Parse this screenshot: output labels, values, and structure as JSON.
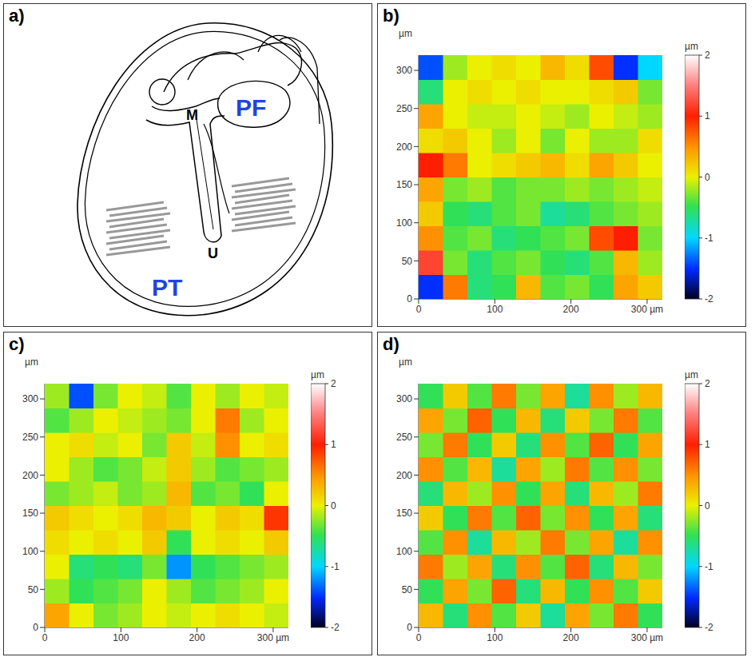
{
  "diagram": {
    "panel": "a)",
    "labels": [
      "M",
      "PF",
      "U",
      "PT"
    ]
  },
  "chart_data": [
    {
      "type": "heatmap",
      "panel": "b)",
      "ylabel": "µm",
      "xlim": [
        0,
        320
      ],
      "ylim": [
        0,
        320
      ],
      "xticks": [
        0,
        100,
        200,
        {
          "value": 300,
          "label": "300 µm"
        }
      ],
      "yticks": [
        0,
        50,
        100,
        150,
        200,
        250,
        300
      ],
      "x": [
        16,
        48,
        80,
        112,
        144,
        176,
        208,
        240,
        272,
        304
      ],
      "y": [
        16,
        48,
        80,
        112,
        144,
        176,
        208,
        240,
        272,
        304
      ],
      "cells": [
        [
          -1.5,
          0.6,
          -0.6,
          -0.5,
          0.3,
          -0.4,
          -0.3,
          -0.5,
          0.4,
          0.2
        ],
        [
          1.2,
          -0.3,
          -0.6,
          -0.4,
          -0.3,
          -0.5,
          -0.6,
          -0.4,
          0.3,
          -0.2
        ],
        [
          0.5,
          -0.4,
          -0.3,
          -0.6,
          -0.5,
          -0.4,
          -0.3,
          0.8,
          1.0,
          -0.3
        ],
        [
          0.2,
          -0.5,
          -0.6,
          -0.4,
          -0.3,
          -0.7,
          -0.6,
          -0.4,
          -0.3,
          -0.2
        ],
        [
          0.4,
          -0.3,
          -0.2,
          -0.4,
          -0.3,
          -0.3,
          -0.2,
          -0.3,
          -0.2,
          -0.1
        ],
        [
          1.0,
          0.6,
          0.0,
          0.1,
          0.2,
          0.3,
          0.1,
          0.4,
          0.2,
          0.0
        ],
        [
          0.1,
          0.2,
          0.0,
          -0.2,
          0.0,
          -0.3,
          0.0,
          -0.2,
          -0.2,
          0.1
        ],
        [
          0.4,
          0.0,
          -0.1,
          -0.1,
          0.0,
          -0.1,
          -0.2,
          0.0,
          -0.1,
          -0.2
        ],
        [
          -0.6,
          0.0,
          0.1,
          0.0,
          0.1,
          0.0,
          0.0,
          0.1,
          0.2,
          -0.3
        ],
        [
          -1.4,
          -0.2,
          0.0,
          0.1,
          0.0,
          0.3,
          0.1,
          0.8,
          -1.5,
          -1.0
        ]
      ],
      "colorbar": {
        "label": "µm",
        "range": [
          -2,
          2
        ],
        "ticks": [
          -2,
          -1,
          0,
          1,
          2
        ]
      }
    },
    {
      "type": "heatmap",
      "panel": "c)",
      "ylabel": "µm",
      "xlim": [
        0,
        320
      ],
      "ylim": [
        0,
        320
      ],
      "xticks": [
        0,
        100,
        200,
        {
          "value": 300,
          "label": "300 µm"
        }
      ],
      "yticks": [
        0,
        50,
        100,
        150,
        200,
        250,
        300
      ],
      "x": [
        16,
        48,
        80,
        112,
        144,
        176,
        208,
        240,
        272,
        304
      ],
      "y": [
        16,
        48,
        80,
        112,
        144,
        176,
        208,
        240,
        272,
        304
      ],
      "cells": [
        [
          0.4,
          0.0,
          -0.3,
          -0.2,
          0.0,
          -0.1,
          0.0,
          0.1,
          0.0,
          -0.1
        ],
        [
          -0.2,
          -0.5,
          -0.4,
          -0.3,
          0.0,
          -0.2,
          -0.4,
          -0.3,
          -0.2,
          0.0
        ],
        [
          0.0,
          -0.6,
          -0.5,
          -0.6,
          -0.3,
          -1.2,
          -0.5,
          -0.4,
          -0.3,
          -0.2
        ],
        [
          0.1,
          0.0,
          0.1,
          0.0,
          0.2,
          -0.5,
          0.0,
          0.1,
          0.0,
          0.2
        ],
        [
          0.2,
          0.1,
          0.0,
          0.1,
          0.3,
          0.2,
          0.0,
          0.2,
          0.1,
          0.9
        ],
        [
          -0.3,
          -0.2,
          -0.1,
          -0.3,
          -0.2,
          0.3,
          -0.4,
          -0.3,
          -0.5,
          0.0
        ],
        [
          0.0,
          -0.2,
          -0.4,
          -0.3,
          -0.1,
          0.2,
          -0.2,
          -0.4,
          -0.3,
          -0.2
        ],
        [
          0.0,
          0.1,
          -0.1,
          0.0,
          -0.3,
          0.2,
          -0.1,
          0.5,
          0.0,
          0.1
        ],
        [
          -0.4,
          -0.2,
          0.0,
          -0.1,
          -0.2,
          -0.3,
          0.0,
          0.6,
          -0.2,
          0.0
        ],
        [
          -0.2,
          -1.4,
          -0.3,
          0.0,
          -0.1,
          -0.4,
          0.0,
          -0.2,
          0.0,
          -0.1
        ]
      ],
      "colorbar": {
        "label": "µm",
        "range": [
          -2,
          2
        ],
        "ticks": [
          -2,
          -1,
          0,
          1,
          2
        ]
      }
    },
    {
      "type": "heatmap",
      "panel": "d)",
      "ylabel": "µm",
      "xlim": [
        0,
        320
      ],
      "ylim": [
        0,
        320
      ],
      "xticks": [
        0,
        100,
        200,
        {
          "value": 300,
          "label": "300 µm"
        }
      ],
      "yticks": [
        0,
        50,
        100,
        150,
        200,
        250,
        300
      ],
      "x": [
        16,
        48,
        80,
        112,
        144,
        176,
        208,
        240,
        272,
        304
      ],
      "y": [
        16,
        48,
        80,
        112,
        144,
        176,
        208,
        240,
        272,
        304
      ],
      "cells": [
        [
          0.3,
          -0.6,
          0.5,
          -0.4,
          0.2,
          -0.7,
          0.4,
          -0.3,
          0.6,
          -0.5
        ],
        [
          -0.5,
          0.4,
          -0.3,
          0.7,
          -0.6,
          0.3,
          -0.5,
          0.5,
          -0.4,
          0.2
        ],
        [
          0.6,
          -0.2,
          0.4,
          -0.6,
          0.5,
          -0.4,
          0.7,
          -0.6,
          0.3,
          -0.3
        ],
        [
          -0.4,
          0.5,
          -0.7,
          0.3,
          -0.2,
          0.6,
          -0.3,
          0.4,
          -0.7,
          0.5
        ],
        [
          0.2,
          -0.5,
          0.6,
          -0.4,
          0.7,
          -0.3,
          0.5,
          -0.5,
          0.4,
          -0.6
        ],
        [
          -0.6,
          0.3,
          -0.2,
          0.5,
          -0.5,
          0.4,
          -0.6,
          0.3,
          -0.2,
          0.6
        ],
        [
          0.5,
          -0.4,
          0.3,
          -0.7,
          0.4,
          -0.2,
          0.6,
          -0.4,
          0.5,
          -0.3
        ],
        [
          -0.3,
          0.6,
          -0.5,
          0.2,
          -0.6,
          0.5,
          -0.4,
          0.7,
          -0.5,
          0.4
        ],
        [
          0.4,
          -0.3,
          0.7,
          -0.5,
          0.3,
          -0.6,
          0.2,
          -0.3,
          0.6,
          -0.4
        ],
        [
          -0.5,
          0.2,
          -0.4,
          0.6,
          -0.3,
          0.4,
          -0.7,
          0.5,
          -0.2,
          0.3
        ]
      ],
      "colorbar": {
        "label": "µm",
        "range": [
          -2,
          2
        ],
        "ticks": [
          -2,
          -1,
          0,
          1,
          2
        ]
      }
    }
  ]
}
